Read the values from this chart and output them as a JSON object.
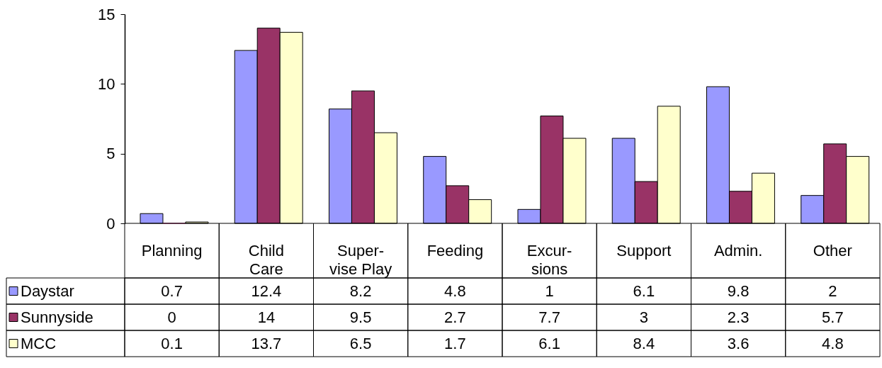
{
  "chart_data": {
    "type": "bar",
    "categories": [
      "Planning",
      "Child Care",
      "Super-vise Play",
      "Feeding",
      "Excur-sions",
      "Support",
      "Admin.",
      "Other"
    ],
    "series": [
      {
        "name": "Daystar",
        "color": "#9999ff",
        "values": [
          0.7,
          12.4,
          8.2,
          4.8,
          1,
          6.1,
          9.8,
          2
        ]
      },
      {
        "name": "Sunnyside",
        "color": "#993366",
        "values": [
          0,
          14,
          9.5,
          2.7,
          7.7,
          3,
          2.3,
          5.7
        ]
      },
      {
        "name": "MCC",
        "color": "#ffffcc",
        "values": [
          0.1,
          13.7,
          6.5,
          1.7,
          6.1,
          8.4,
          3.6,
          4.8
        ]
      }
    ],
    "ylim": [
      0,
      15
    ],
    "yticks": [
      0,
      5,
      10,
      15
    ],
    "grid": false,
    "legend": "bottom left",
    "data_labels": true
  }
}
